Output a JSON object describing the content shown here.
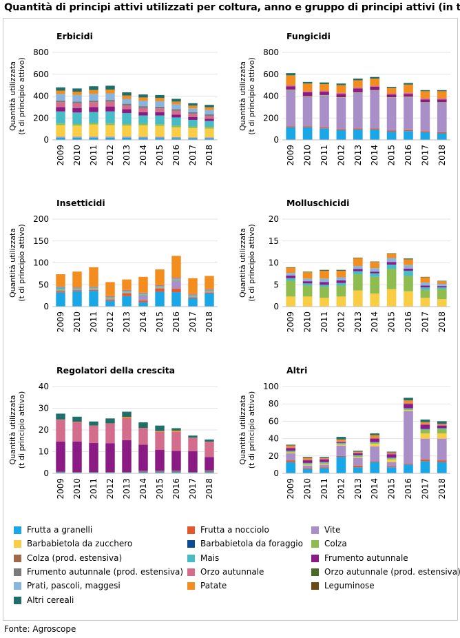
{
  "title": "Quantità di principi attivi utilizzati per coltura, anno e gruppo di principi attivi (in t)",
  "source": "Fonte: Agroscope",
  "years": [
    "2009",
    "2010",
    "2011",
    "2012",
    "2013",
    "2014",
    "2015",
    "2016",
    "2017",
    "2018"
  ],
  "ylabel_line1": "Quantità utilizzata",
  "ylabel_line2": "(t di principio attivo)",
  "legend": [
    {
      "key": "frutta_granelli",
      "label": "Frutta a granelli",
      "color": "#1aa7e8"
    },
    {
      "key": "frutta_nocciolo",
      "label": "Frutta a nocciolo",
      "color": "#e4582a"
    },
    {
      "key": "vite",
      "label": "Vite",
      "color": "#a98fc8"
    },
    {
      "key": "barbabietola_zucchero",
      "label": "Barbabietola da zucchero",
      "color": "#f9cd44"
    },
    {
      "key": "barbabietola_foraggio",
      "label": "Barbabietola da foraggio",
      "color": "#0d4c92"
    },
    {
      "key": "colza",
      "label": "Colza",
      "color": "#8fbc4e"
    },
    {
      "key": "colza_ext",
      "label": "Colza (prod. estensiva)",
      "color": "#a0694a"
    },
    {
      "key": "mais",
      "label": "Mais",
      "color": "#48bcc6"
    },
    {
      "key": "frumento",
      "label": "Frumento autunnale",
      "color": "#8c1a84"
    },
    {
      "key": "frumento_ext",
      "label": "Frumento autunnale (prod. estensiva)",
      "color": "#7a7a7a"
    },
    {
      "key": "orzo",
      "label": "Orzo autunnale",
      "color": "#d46c8c"
    },
    {
      "key": "orzo_ext",
      "label": "Orzo autunnale (prod. estensiva)",
      "color": "#4a6b28"
    },
    {
      "key": "prati",
      "label": "Prati, pascoli, maggesi",
      "color": "#88b4e0"
    },
    {
      "key": "patate",
      "label": "Patate",
      "color": "#f28d1e"
    },
    {
      "key": "leguminose",
      "label": "Leguminose",
      "color": "#6b4a14"
    },
    {
      "key": "altri_cereali",
      "label": "Altri cereali",
      "color": "#1f6e6a"
    }
  ],
  "chart_data": [
    {
      "type": "bar",
      "stacked": true,
      "title": "Erbicidi",
      "ylim": [
        0,
        800
      ],
      "yticks": [
        0,
        200,
        400,
        600,
        800
      ],
      "series": [
        {
          "name": "Frutta a granelli",
          "values": [
            20,
            20,
            20,
            20,
            20,
            18,
            18,
            15,
            15,
            15
          ]
        },
        {
          "name": "Vite",
          "values": [
            10,
            10,
            10,
            10,
            10,
            10,
            10,
            10,
            8,
            8
          ]
        },
        {
          "name": "Barbabietola da zucchero",
          "values": [
            105,
            100,
            110,
            105,
            100,
            105,
            100,
            90,
            85,
            80
          ]
        },
        {
          "name": "Colza",
          "values": [
            15,
            15,
            15,
            15,
            15,
            15,
            15,
            15,
            15,
            15
          ]
        },
        {
          "name": "Mais",
          "values": [
            110,
            105,
            100,
            110,
            100,
            75,
            80,
            75,
            60,
            55
          ]
        },
        {
          "name": "Frumento autunnale",
          "values": [
            40,
            40,
            45,
            45,
            35,
            30,
            30,
            25,
            25,
            20
          ]
        },
        {
          "name": "Orzo autunnale",
          "values": [
            45,
            45,
            45,
            45,
            35,
            40,
            35,
            35,
            30,
            25
          ]
        },
        {
          "name": "Frumento autunnale (prod. estensiva)",
          "values": [
            15,
            15,
            15,
            15,
            15,
            15,
            15,
            15,
            15,
            15
          ]
        },
        {
          "name": "Prati, pascoli, maggesi",
          "values": [
            60,
            60,
            60,
            60,
            45,
            50,
            50,
            45,
            35,
            40
          ]
        },
        {
          "name": "Patate",
          "values": [
            30,
            30,
            35,
            35,
            30,
            30,
            30,
            25,
            25,
            25
          ]
        },
        {
          "name": "Altri cereali",
          "values": [
            30,
            30,
            35,
            35,
            30,
            27,
            27,
            25,
            22,
            22
          ]
        }
      ]
    },
    {
      "type": "bar",
      "stacked": true,
      "title": "Fungicidi",
      "ylim": [
        0,
        800
      ],
      "yticks": [
        0,
        200,
        400,
        600,
        800
      ],
      "series": [
        {
          "name": "Frutta a granelli",
          "values": [
            115,
            115,
            105,
            90,
            95,
            95,
            75,
            80,
            70,
            60
          ]
        },
        {
          "name": "Frutta a nocciolo",
          "values": [
            10,
            10,
            10,
            10,
            10,
            10,
            10,
            10,
            10,
            10
          ]
        },
        {
          "name": "Vite",
          "values": [
            330,
            270,
            290,
            285,
            325,
            345,
            300,
            300,
            260,
            270
          ]
        },
        {
          "name": "Colza",
          "values": [
            5,
            5,
            5,
            5,
            5,
            5,
            5,
            5,
            5,
            5
          ]
        },
        {
          "name": "Frumento autunnale",
          "values": [
            30,
            35,
            30,
            30,
            35,
            30,
            25,
            25,
            25,
            25
          ]
        },
        {
          "name": "Orzo autunnale",
          "values": [
            10,
            10,
            10,
            10,
            10,
            10,
            10,
            10,
            10,
            10
          ]
        },
        {
          "name": "Patate",
          "values": [
            90,
            70,
            60,
            70,
            65,
            65,
            50,
            75,
            65,
            65
          ]
        },
        {
          "name": "Altri cereali",
          "values": [
            20,
            15,
            15,
            15,
            15,
            15,
            10,
            15,
            10,
            10
          ]
        }
      ]
    },
    {
      "type": "bar",
      "stacked": true,
      "title": "Insetticidi",
      "ylim": [
        0,
        200
      ],
      "yticks": [
        0,
        50,
        100,
        150,
        200
      ],
      "series": [
        {
          "name": "Frutta a granelli",
          "values": [
            32,
            35,
            36,
            13,
            24,
            10,
            34,
            33,
            19,
            30
          ]
        },
        {
          "name": "Frutta a nocciolo",
          "values": [
            3,
            2,
            2,
            3,
            6,
            4,
            7,
            8,
            2,
            2
          ]
        },
        {
          "name": "Vite",
          "values": [
            2,
            2,
            2,
            2,
            2,
            12,
            2,
            19,
            2,
            2
          ]
        },
        {
          "name": "Colza",
          "values": [
            2,
            2,
            2,
            2,
            2,
            2,
            2,
            2,
            2,
            2
          ]
        },
        {
          "name": "Mais",
          "values": [
            5,
            2,
            2,
            2,
            2,
            2,
            2,
            2,
            2,
            2
          ]
        },
        {
          "name": "Orzo autunnale",
          "values": [
            2,
            2,
            2,
            2,
            2,
            2,
            2,
            2,
            2,
            2
          ]
        },
        {
          "name": "Patate",
          "values": [
            28,
            35,
            44,
            32,
            24,
            36,
            36,
            50,
            36,
            30
          ]
        }
      ]
    },
    {
      "type": "bar",
      "stacked": true,
      "title": "Molluschicidi",
      "ylim": [
        0,
        20
      ],
      "yticks": [
        0,
        5,
        10,
        15,
        20
      ],
      "series": [
        {
          "name": "Barbabietola da zucchero",
          "values": [
            2.3,
            2.3,
            2.0,
            2.3,
            3.7,
            3.0,
            4.0,
            3.5,
            2.0,
            1.7
          ]
        },
        {
          "name": "Colza",
          "values": [
            3.6,
            2.5,
            2.5,
            2.5,
            3.7,
            3.8,
            4.6,
            3.5,
            1.8,
            2.3
          ]
        },
        {
          "name": "Mais",
          "values": [
            0.6,
            0.5,
            0.5,
            0.6,
            0.7,
            0.8,
            1.0,
            1.2,
            0.6,
            0.4
          ]
        },
        {
          "name": "Frumento autunnale",
          "values": [
            0.6,
            0.5,
            0.6,
            0.6,
            0.5,
            0.4,
            0.6,
            0.5,
            0.4,
            0.3
          ]
        },
        {
          "name": "Prati, pascoli, maggesi",
          "values": [
            0.6,
            0.6,
            0.8,
            0.7,
            0.7,
            0.8,
            0.9,
            0.8,
            0.7,
            0.5
          ]
        },
        {
          "name": "Patate",
          "values": [
            1.2,
            1.5,
            1.8,
            1.5,
            1.8,
            1.4,
            1.0,
            1.3,
            1.2,
            0.6
          ]
        },
        {
          "name": "Altri cereali",
          "values": [
            0.1,
            0.1,
            0.2,
            0.2,
            0.1,
            0.1,
            0.1,
            0.2,
            0.1,
            0.1
          ]
        }
      ]
    },
    {
      "type": "bar",
      "stacked": true,
      "title": "Regolatori della crescita",
      "ylim": [
        0,
        40
      ],
      "yticks": [
        0,
        10,
        20,
        30,
        40
      ],
      "series": [
        {
          "name": "Frutta a granelli",
          "values": [
            0.4,
            0.3,
            0.3,
            0.3,
            0.3,
            0.4,
            0.4,
            0.4,
            0.3,
            0.4
          ]
        },
        {
          "name": "Frumento autunnale (prod. estensiva)",
          "values": [
            0.3,
            0.3,
            0.3,
            0.3,
            0.3,
            0.8,
            0.8,
            0.9,
            0.3,
            1.0
          ]
        },
        {
          "name": "Frumento autunnale",
          "values": [
            13.9,
            14.1,
            13.4,
            13.3,
            14.7,
            12.0,
            9.6,
            9.0,
            9.6,
            6.1
          ]
        },
        {
          "name": "Orzo autunnale",
          "values": [
            10.1,
            9.0,
            7.9,
            9.0,
            10.1,
            7.6,
            8.3,
            8.8,
            6.1,
            7.0
          ]
        },
        {
          "name": "Patate",
          "values": [
            0.1,
            0.1,
            0.1,
            0.1,
            0.6,
            0.1,
            0.4,
            0.6,
            0.1,
            0.1
          ]
        },
        {
          "name": "Altri cereali",
          "values": [
            2.7,
            2.3,
            1.9,
            2.3,
            2.4,
            2.6,
            2.5,
            1.1,
            1.0,
            1.0
          ]
        }
      ]
    },
    {
      "type": "bar",
      "stacked": true,
      "title": "Altri",
      "ylim": [
        0,
        100
      ],
      "yticks": [
        0,
        20,
        40,
        60,
        80,
        100
      ],
      "series": [
        {
          "name": "Frutta a granelli",
          "values": [
            13,
            5,
            6,
            19,
            7,
            13,
            7,
            10,
            14,
            13
          ]
        },
        {
          "name": "Frutta a nocciolo",
          "values": [
            2,
            1,
            1,
            1,
            2,
            1,
            1,
            1,
            2,
            2
          ]
        },
        {
          "name": "Vite",
          "values": [
            8,
            3,
            3,
            12,
            9,
            17,
            5,
            61,
            24,
            25
          ]
        },
        {
          "name": "Barbabietola da zucchero",
          "values": [
            1,
            1,
            1,
            1,
            1,
            3,
            3,
            1,
            6,
            6
          ]
        },
        {
          "name": "Colza",
          "values": [
            1,
            1,
            1,
            1,
            1,
            1,
            1,
            1,
            4,
            5
          ]
        },
        {
          "name": "Mais",
          "values": [
            1,
            1,
            1,
            1,
            1,
            1,
            1,
            1,
            1,
            1
          ]
        },
        {
          "name": "Frumento autunnale",
          "values": [
            3,
            3,
            3,
            1,
            2,
            4,
            4,
            5,
            5,
            3
          ]
        },
        {
          "name": "Orzo autunnale",
          "values": [
            1,
            1,
            1,
            1,
            1,
            1,
            1,
            1,
            1,
            1
          ]
        },
        {
          "name": "Patate",
          "values": [
            2,
            2,
            1,
            2,
            1,
            3,
            1,
            3,
            2,
            1
          ]
        },
        {
          "name": "Altri cereali",
          "values": [
            1,
            1,
            1,
            3,
            1,
            2,
            1,
            3,
            3,
            3
          ]
        }
      ]
    }
  ]
}
